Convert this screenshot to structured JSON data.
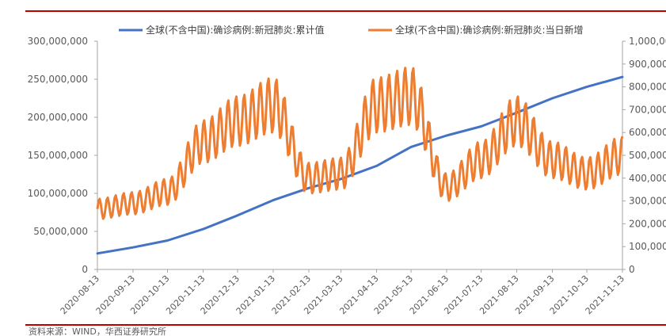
{
  "chart_data": {
    "type": "line",
    "legend_position": "top",
    "grid": false,
    "series": [
      {
        "name": "全球(不含中国):确诊病例:新冠肺炎:累计值",
        "axis": "left",
        "color": "#4472c4",
        "x": [
          "2020-08-13",
          "2020-09-13",
          "2020-10-13",
          "2020-11-13",
          "2020-12-13",
          "2021-01-13",
          "2021-02-13",
          "2021-03-13",
          "2021-04-13",
          "2021-05-13",
          "2021-06-13",
          "2021-07-13",
          "2021-08-13",
          "2021-09-13",
          "2021-10-13",
          "2021-11-13"
        ],
        "values": [
          21000000,
          29000000,
          38000000,
          53000000,
          71000000,
          91000000,
          107000000,
          119000000,
          136000000,
          161000000,
          176000000,
          188000000,
          206000000,
          225000000,
          240000000,
          253000000
        ]
      },
      {
        "name": "全球(不含中国):确诊病例:新冠肺炎:当日新增",
        "axis": "right",
        "color": "#ed7d31",
        "x": [
          "2020-08-13",
          "2020-09-13",
          "2020-10-13",
          "2020-11-13",
          "2020-12-13",
          "2021-01-13",
          "2021-02-13",
          "2021-03-13",
          "2021-04-13",
          "2021-05-13",
          "2021-06-13",
          "2021-07-13",
          "2021-08-13",
          "2021-09-13",
          "2021-10-13",
          "2021-11-13"
        ],
        "values": [
          265000,
          290000,
          340000,
          560000,
          650000,
          720000,
          400000,
          420000,
          720000,
          760000,
          360000,
          480000,
          650000,
          480000,
          420000,
          500000
        ]
      }
    ],
    "left_axis": {
      "range": [
        0,
        300000000
      ],
      "ticks": [
        "0",
        "50,000,000",
        "100,000,000",
        "150,000,000",
        "200,000,000",
        "250,000,000",
        "300,000,000"
      ]
    },
    "right_axis": {
      "range": [
        0,
        1000000
      ],
      "ticks": [
        "0",
        "100,000",
        "200,000",
        "300,000",
        "400,000",
        "500,000",
        "600,000",
        "700,000",
        "800,000",
        "900,000",
        "1,000,000"
      ]
    },
    "x_ticks": [
      "2020-08-13",
      "2020-09-13",
      "2020-10-13",
      "2020-11-13",
      "2020-12-13",
      "2021-01-13",
      "2021-02-13",
      "2021-03-13",
      "2021-04-13",
      "2021-05-13",
      "2021-06-13",
      "2021-07-13",
      "2021-08-13",
      "2021-09-13",
      "2021-10-13",
      "2021-11-13"
    ]
  },
  "source_text": "资料来源：WIND，华西证券研究所"
}
